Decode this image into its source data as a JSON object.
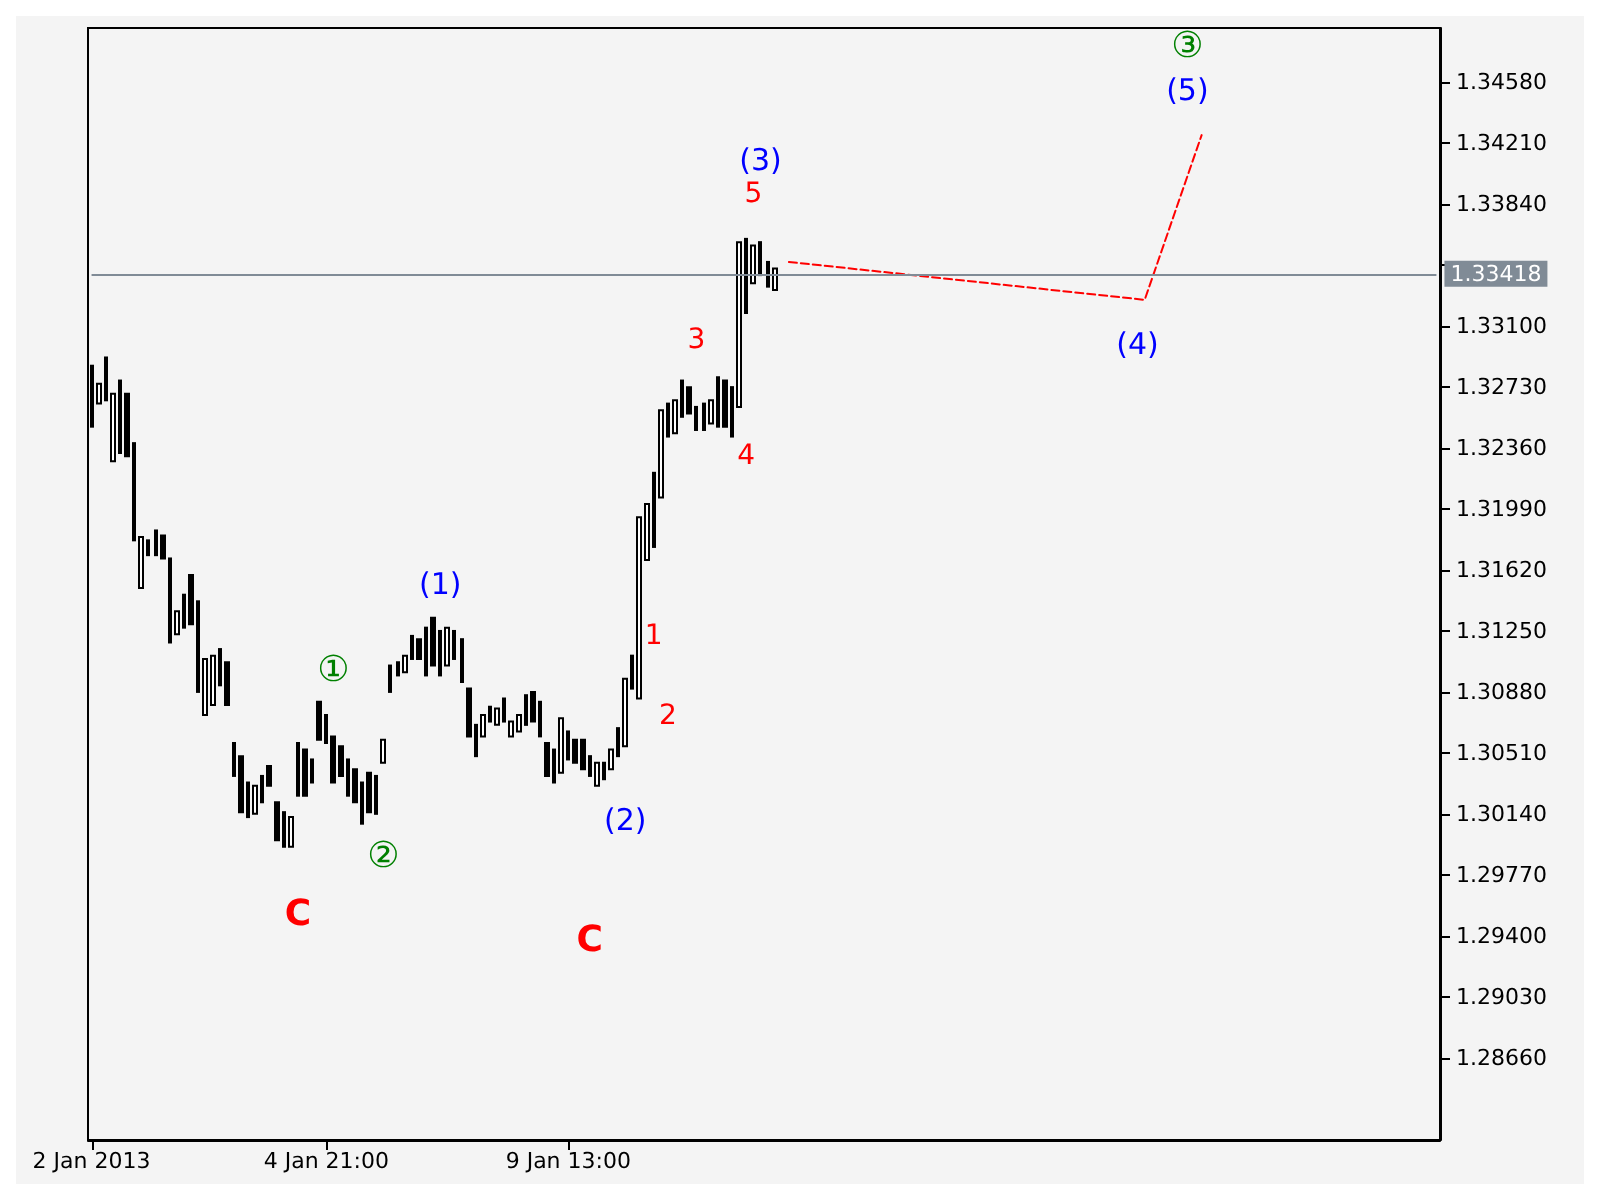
{
  "chart_data": {
    "type": "candlestick",
    "categories": [
      "2 Jan 2013",
      null,
      null,
      null,
      null,
      null,
      null,
      null,
      null,
      null,
      null,
      null,
      null,
      null,
      null,
      null,
      null,
      null,
      null,
      null,
      null,
      null,
      null,
      null,
      null,
      null,
      null,
      null,
      null,
      null,
      null,
      null,
      null,
      "4 Jan 21:00",
      null,
      null,
      null,
      null,
      null,
      null,
      null,
      null,
      null,
      null,
      null,
      null,
      null,
      null,
      null,
      null,
      null,
      null,
      null,
      null,
      null,
      null,
      null,
      null,
      null,
      null,
      null,
      null,
      null,
      null,
      null,
      null,
      null,
      "9 Jan 13:00",
      null,
      null,
      null,
      null,
      null,
      null,
      null,
      null,
      null,
      null,
      null,
      null,
      null,
      null,
      null,
      null,
      null,
      null,
      null,
      null,
      null,
      null,
      null,
      null,
      null,
      null,
      null,
      null,
      null,
      null,
      null,
      null,
      null,
      null,
      null,
      null,
      null,
      null,
      null,
      null,
      null,
      null,
      null,
      null,
      null,
      null,
      null,
      null,
      null,
      null,
      null,
      null,
      null,
      null,
      null,
      null,
      null,
      null,
      null,
      null,
      null,
      null,
      null,
      null,
      null,
      null,
      null,
      null,
      null,
      null,
      null,
      null,
      null,
      null,
      null,
      null,
      null,
      null,
      null,
      null,
      null,
      null,
      null,
      null,
      null,
      null,
      null,
      null,
      null,
      null,
      null,
      null,
      null,
      null,
      null,
      null,
      null,
      null,
      null,
      null,
      null,
      null,
      null,
      null,
      null,
      null,
      null,
      null,
      null,
      null,
      null,
      null,
      null,
      null,
      null,
      null,
      null,
      null,
      null,
      null,
      null,
      null
    ],
    "ohlc": [
      [
        1.3249,
        1.3286,
        1.3249,
        1.3286
      ],
      [
        1.3263,
        1.3275,
        1.3263,
        1.3275
      ],
      [
        1.3291,
        1.3291,
        1.3265,
        1.3265
      ],
      [
        1.3228,
        1.3269,
        1.3228,
        1.3269
      ],
      [
        1.3277,
        1.3277,
        1.3233,
        1.3233
      ],
      [
        1.3269,
        1.3269,
        1.3231,
        1.3231
      ],
      [
        1.3239,
        1.3239,
        1.318,
        1.318
      ],
      [
        1.3151,
        1.3182,
        1.3151,
        1.3182
      ],
      [
        1.3171,
        1.318,
        1.3171,
        1.318
      ],
      [
        1.3186,
        1.3186,
        1.3171,
        1.3171
      ],
      [
        1.3183,
        1.3183,
        1.3169,
        1.3169
      ],
      [
        1.3169,
        1.3169,
        1.3118,
        1.3118
      ],
      [
        1.3123,
        1.3137,
        1.3123,
        1.3137
      ],
      [
        1.3127,
        1.3147,
        1.3127,
        1.3147
      ],
      [
        1.3159,
        1.3159,
        1.3129,
        1.3129
      ],
      [
        1.3143,
        1.3143,
        1.3088,
        1.3088
      ],
      [
        1.3074,
        1.3108,
        1.3074,
        1.3108
      ],
      [
        1.308,
        1.311,
        1.308,
        1.311
      ],
      [
        1.3114,
        1.3114,
        1.3092,
        1.3092
      ],
      [
        1.3106,
        1.3106,
        1.308,
        1.308
      ],
      [
        1.3057,
        1.3057,
        1.3037,
        1.3037
      ],
      [
        1.3049,
        1.3049,
        1.3015,
        1.3015
      ],
      [
        1.3012,
        1.3033,
        1.3012,
        1.3033
      ],
      [
        1.3014,
        1.3031,
        1.3014,
        1.3031
      ],
      [
        1.3021,
        1.3037,
        1.3021,
        1.3037
      ],
      [
        1.3043,
        1.3043,
        1.3031,
        1.3031
      ],
      [
        1.3021,
        1.3021,
        1.2998,
        1.2998
      ],
      [
        1.3015,
        1.3015,
        1.2994,
        1.2994
      ],
      [
        1.2994,
        1.3012,
        1.2994,
        1.3012
      ],
      [
        1.3057,
        1.3057,
        1.3025,
        1.3025
      ],
      [
        1.3053,
        1.3053,
        1.3025,
        1.3025
      ],
      [
        1.3033,
        1.3047,
        1.3033,
        1.3047
      ],
      [
        1.3082,
        1.3082,
        1.3059,
        1.3059
      ],
      [
        1.3074,
        1.3074,
        1.3057,
        1.3057
      ],
      [
        1.3061,
        1.3061,
        1.3033,
        1.3033
      ],
      [
        1.3055,
        1.3055,
        1.3037,
        1.3037
      ],
      [
        1.3047,
        1.3047,
        1.3025,
        1.3025
      ],
      [
        1.3041,
        1.3041,
        1.3021,
        1.3021
      ],
      [
        1.3008,
        1.3033,
        1.3008,
        1.3033
      ],
      [
        1.3039,
        1.3039,
        1.3015,
        1.3015
      ],
      [
        1.3014,
        1.3037,
        1.3014,
        1.3037
      ],
      [
        1.3045,
        1.3059,
        1.3045,
        1.3059
      ],
      [
        1.3088,
        1.3104,
        1.3088,
        1.3104
      ],
      [
        1.3098,
        1.3106,
        1.3098,
        1.3106
      ],
      [
        1.31,
        1.311,
        1.31,
        1.311
      ],
      [
        1.3122,
        1.3122,
        1.3108,
        1.3108
      ],
      [
        1.312,
        1.312,
        1.3108,
        1.3108
      ],
      [
        1.3098,
        1.3127,
        1.3098,
        1.3127
      ],
      [
        1.3133,
        1.3133,
        1.3104,
        1.3104
      ],
      [
        1.3125,
        1.3125,
        1.3098,
        1.3098
      ],
      [
        1.3104,
        1.3127,
        1.3104,
        1.3127
      ],
      [
        1.3125,
        1.3125,
        1.3108,
        1.3108
      ],
      [
        1.312,
        1.312,
        1.3094,
        1.3094
      ],
      [
        1.309,
        1.309,
        1.3061,
        1.3061
      ],
      [
        1.3049,
        1.3068,
        1.3049,
        1.3068
      ],
      [
        1.3061,
        1.3074,
        1.3061,
        1.3074
      ],
      [
        1.3079,
        1.3079,
        1.307,
        1.307
      ],
      [
        1.3068,
        1.3078,
        1.3068,
        1.3078
      ],
      [
        1.3084,
        1.3084,
        1.307,
        1.307
      ],
      [
        1.3061,
        1.307,
        1.3061,
        1.307
      ],
      [
        1.3064,
        1.3074,
        1.3064,
        1.3074
      ],
      [
        1.3068,
        1.3086,
        1.3068,
        1.3086
      ],
      [
        1.3088,
        1.3088,
        1.307,
        1.307
      ],
      [
        1.3082,
        1.3082,
        1.3061,
        1.3061
      ],
      [
        1.3057,
        1.3057,
        1.3037,
        1.3037
      ],
      [
        1.3033,
        1.3053,
        1.3033,
        1.3053
      ],
      [
        1.3039,
        1.3072,
        1.3039,
        1.3072
      ],
      [
        1.3064,
        1.3064,
        1.3047,
        1.3047
      ],
      [
        1.3059,
        1.3059,
        1.3045,
        1.3045
      ],
      [
        1.3059,
        1.3059,
        1.3041,
        1.3041
      ],
      [
        1.3049,
        1.3049,
        1.3037,
        1.3037
      ],
      [
        1.3031,
        1.3045,
        1.3031,
        1.3045
      ],
      [
        1.3035,
        1.3045,
        1.3035,
        1.3045
      ],
      [
        1.3041,
        1.3053,
        1.3041,
        1.3053
      ],
      [
        1.3049,
        1.3066,
        1.3049,
        1.3066
      ],
      [
        1.3055,
        1.3096,
        1.3055,
        1.3096
      ],
      [
        1.309,
        1.311,
        1.309,
        1.311
      ],
      [
        1.3084,
        1.3194,
        1.3084,
        1.3194
      ],
      [
        1.3168,
        1.3202,
        1.3168,
        1.3202
      ],
      [
        1.3176,
        1.3221,
        1.3176,
        1.3221
      ],
      [
        1.3206,
        1.3259,
        1.3206,
        1.3259
      ],
      [
        1.3243,
        1.3263,
        1.3243,
        1.3263
      ],
      [
        1.3245,
        1.3265,
        1.3245,
        1.3265
      ],
      [
        1.3277,
        1.3277,
        1.3255,
        1.3255
      ],
      [
        1.3273,
        1.3273,
        1.3257,
        1.3257
      ],
      [
        1.3247,
        1.3261,
        1.3247,
        1.3261
      ],
      [
        1.3247,
        1.3263,
        1.3247,
        1.3263
      ],
      [
        1.3251,
        1.3265,
        1.3251,
        1.3265
      ],
      [
        1.3279,
        1.3279,
        1.3249,
        1.3249
      ],
      [
        1.3277,
        1.3277,
        1.3249,
        1.3249
      ],
      [
        1.3243,
        1.3273,
        1.3243,
        1.3273
      ],
      [
        1.3261,
        1.3361,
        1.3261,
        1.3361
      ],
      [
        1.3318,
        1.3363,
        1.3318,
        1.3363
      ],
      [
        1.3336,
        1.3359,
        1.3336,
        1.3359
      ],
      [
        1.3361,
        1.3361,
        1.3341,
        1.3341
      ],
      [
        1.3349,
        1.3349,
        1.3334,
        1.3334
      ],
      [
        1.3332,
        1.3345,
        1.3332,
        1.3345
      ],
      null,
      null,
      null,
      null,
      null,
      null,
      null,
      null,
      null,
      null,
      null,
      null,
      null,
      null,
      null,
      null,
      null,
      null,
      null,
      null,
      null,
      null,
      null,
      null,
      null,
      null,
      null,
      null,
      null,
      null,
      null,
      null,
      null,
      null,
      null,
      null,
      null,
      null,
      null,
      null,
      null,
      null,
      null,
      null,
      null,
      null,
      null,
      null,
      null,
      null,
      null,
      null,
      null,
      null,
      null,
      null,
      null,
      null,
      null,
      null,
      null,
      null,
      null,
      null,
      null,
      null,
      null,
      null,
      null,
      null,
      null,
      null,
      null,
      null,
      null,
      null,
      null,
      null,
      null,
      null,
      null,
      null,
      null,
      null,
      null,
      null,
      null,
      null,
      null,
      null,
      null,
      null,
      null
    ],
    "series": [
      {
        "type": "line",
        "color": "#ff0000",
        "line_style": "dashed",
        "marker": "none",
        "values": [
          null,
          null,
          null,
          null,
          null,
          null,
          null,
          null,
          null,
          null,
          null,
          null,
          null,
          null,
          null,
          null,
          null,
          null,
          null,
          null,
          null,
          null,
          null,
          null,
          null,
          null,
          null,
          null,
          null,
          null,
          null,
          null,
          null,
          null,
          null,
          null,
          null,
          null,
          null,
          null,
          null,
          null,
          null,
          null,
          null,
          null,
          null,
          null,
          null,
          null,
          null,
          null,
          null,
          null,
          null,
          null,
          null,
          null,
          null,
          null,
          null,
          null,
          null,
          null,
          null,
          null,
          null,
          null,
          null,
          null,
          null,
          null,
          null,
          null,
          null,
          null,
          null,
          null,
          null,
          null,
          null,
          null,
          null,
          null,
          null,
          null,
          null,
          null,
          null,
          null,
          null,
          null,
          null,
          null,
          null,
          null,
          null,
          null,
          1.3349,
          null,
          null,
          null,
          null,
          null,
          null,
          null,
          null,
          null,
          null,
          null,
          null,
          null,
          null,
          null,
          null,
          null,
          null,
          null,
          null,
          null,
          null,
          null,
          null,
          null,
          null,
          null,
          null,
          null,
          null,
          null,
          null,
          null,
          null,
          null,
          null,
          null,
          null,
          null,
          null,
          null,
          null,
          null,
          null,
          null,
          null,
          null,
          null,
          null,
          1.3326,
          null,
          null,
          null,
          null,
          null,
          null,
          null,
          1.3426,
          null,
          null,
          null,
          null,
          null,
          null,
          null,
          null,
          null,
          null,
          null,
          null,
          null,
          null,
          null,
          null,
          null,
          null,
          null,
          null,
          null,
          null,
          null,
          null,
          null,
          null,
          null,
          null,
          null,
          null,
          null,
          null,
          null
        ]
      }
    ],
    "color": "#000000",
    "ylim": [
      1.2816,
      1.3491
    ],
    "yticks": [
      {
        "value": 1.2866,
        "label": "1.28660"
      },
      {
        "value": 1.2903,
        "label": "1.29030"
      },
      {
        "value": 1.294,
        "label": "1.29400"
      },
      {
        "value": 1.2977,
        "label": "1.29770"
      },
      {
        "value": 1.3014,
        "label": "1.30140"
      },
      {
        "value": 1.3051,
        "label": "1.30510"
      },
      {
        "value": 1.3088,
        "label": "1.30880"
      },
      {
        "value": 1.3125,
        "label": "1.31250"
      },
      {
        "value": 1.3162,
        "label": "1.31620"
      },
      {
        "value": 1.3199,
        "label": "1.31990"
      },
      {
        "value": 1.3236,
        "label": "1.32360"
      },
      {
        "value": 1.3273,
        "label": "1.32730"
      },
      {
        "value": 1.331,
        "label": "1.33100"
      },
      {
        "value": 1.3347,
        "label": null
      },
      {
        "value": 1.3384,
        "label": "1.33840"
      },
      {
        "value": 1.3421,
        "label": "1.34210"
      },
      {
        "value": 1.3458,
        "label": "1.34580"
      }
    ],
    "ref_lines": [
      {
        "axis": "y",
        "value": 1.33418,
        "label": "1.33418",
        "color": "#808b96"
      }
    ],
    "annotations": [
      "C",
      "C",
      "①",
      "②",
      "③",
      "(1)",
      "(2)",
      "(3)",
      "(4)",
      "(5)",
      "1",
      "2",
      "3",
      "4",
      "5"
    ]
  }
}
